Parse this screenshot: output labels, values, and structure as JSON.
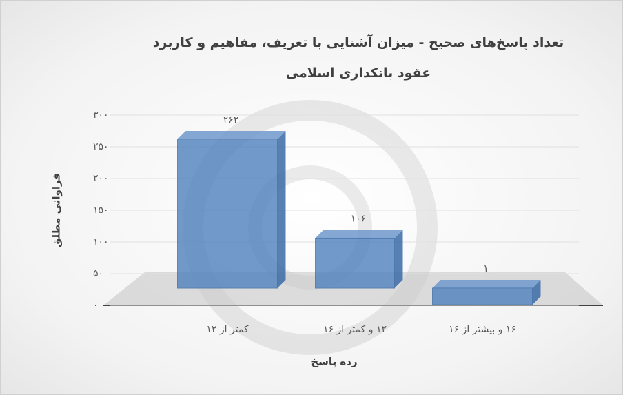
{
  "chart_data": {
    "type": "bar3d",
    "title": "تعداد پاسخ‌های صحیح - میزان آشنایی با تعریف، مفاهیم و کاربرد عقود بانکداری اسلامی",
    "x_label": "رده پاسخ",
    "y_label": "فراوانی مطلق",
    "categories": [
      "کمتر از ۱۲",
      "۱۲ و کمتر از ۱۶",
      "۱۶ و بیشتر از ۱۶"
    ],
    "values": [
      262,
      106,
      1
    ],
    "value_labels": [
      "۲۶۲",
      "۱۰۶",
      "۱"
    ],
    "color": "#4f81bd",
    "ylim": [
      0,
      300
    ],
    "yticks": [
      {
        "value": 0,
        "label": "۰"
      },
      {
        "value": 50,
        "label": "۵۰"
      },
      {
        "value": 100,
        "label": "۱۰۰"
      },
      {
        "value": 150,
        "label": "۱۵۰"
      },
      {
        "value": 200,
        "label": "۲۰۰"
      },
      {
        "value": 250,
        "label": "۲۵۰"
      },
      {
        "value": 300,
        "label": "۳۰۰"
      }
    ],
    "grid": true
  }
}
